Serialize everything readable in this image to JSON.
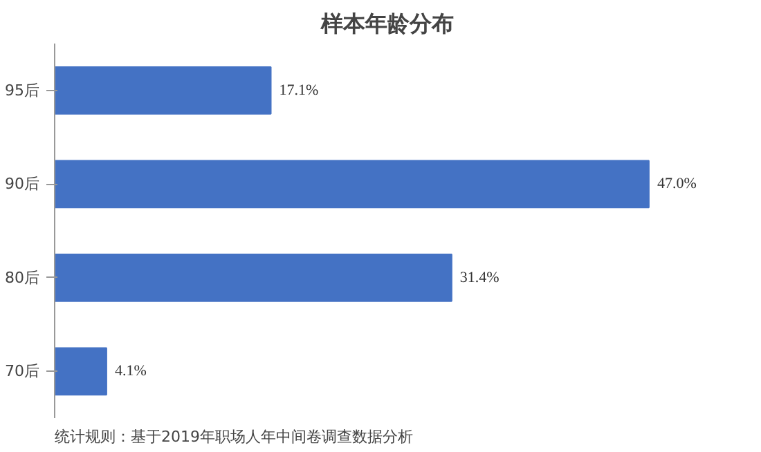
{
  "chart_data": {
    "type": "bar",
    "orientation": "horizontal",
    "title": "样本年龄分布",
    "categories": [
      "95后",
      "90后",
      "80后",
      "70后"
    ],
    "values": [
      17.1,
      47.0,
      31.4,
      4.1
    ],
    "value_labels": [
      "17.1%",
      "47.0%",
      "31.4%",
      "4.1%"
    ],
    "color": "#4472c4",
    "grid": false,
    "annotations": [
      "统计规则：基于2019年职场人年中间卷调查数据分析"
    ]
  }
}
